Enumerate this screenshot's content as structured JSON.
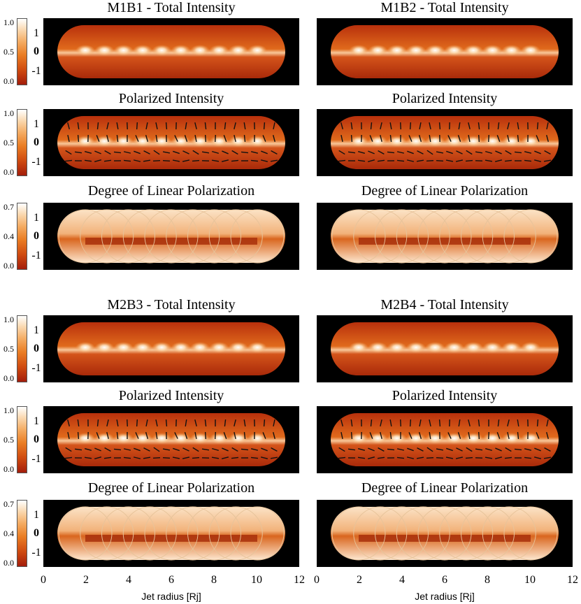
{
  "figure": {
    "groups": [
      {
        "columns": [
          {
            "rows": [
              {
                "title": "M1B1 - Total Intensity",
                "kind": "total"
              },
              {
                "title": "Polarized Intensity",
                "kind": "polarized"
              },
              {
                "title": "Degree of Linear Polarization",
                "kind": "degree"
              }
            ]
          },
          {
            "rows": [
              {
                "title": "M1B2 - Total Intensity",
                "kind": "total"
              },
              {
                "title": "Polarized Intensity",
                "kind": "polarized"
              },
              {
                "title": "Degree of Linear Polarization",
                "kind": "degree"
              }
            ]
          }
        ]
      },
      {
        "columns": [
          {
            "rows": [
              {
                "title": "M2B3 - Total Intensity",
                "kind": "total"
              },
              {
                "title": "Polarized Intensity",
                "kind": "polarized"
              },
              {
                "title": "Degree of Linear Polarization",
                "kind": "degree"
              }
            ]
          },
          {
            "rows": [
              {
                "title": "M2B4 - Total Intensity",
                "kind": "total"
              },
              {
                "title": "Polarized Intensity",
                "kind": "polarized"
              },
              {
                "title": "Degree of Linear Polarization",
                "kind": "degree"
              }
            ]
          }
        ]
      }
    ],
    "colorbar_ticks": {
      "total": [
        "1.0",
        "0.5",
        "0.0"
      ],
      "polarized": [
        "1.0",
        "0.5",
        "0.0"
      ],
      "degree": [
        "0.7",
        "0.4",
        "0.0"
      ]
    },
    "y_ticks": [
      "1",
      "0",
      "-1"
    ],
    "x_ticks": [
      "0",
      "2",
      "4",
      "6",
      "8",
      "10",
      "12"
    ],
    "x_label": "Jet radius [Rj]",
    "colormap": {
      "low": "#a31d0b",
      "mid": "#ea7d24",
      "high": "#ffffff",
      "background": "#000000"
    }
  }
}
